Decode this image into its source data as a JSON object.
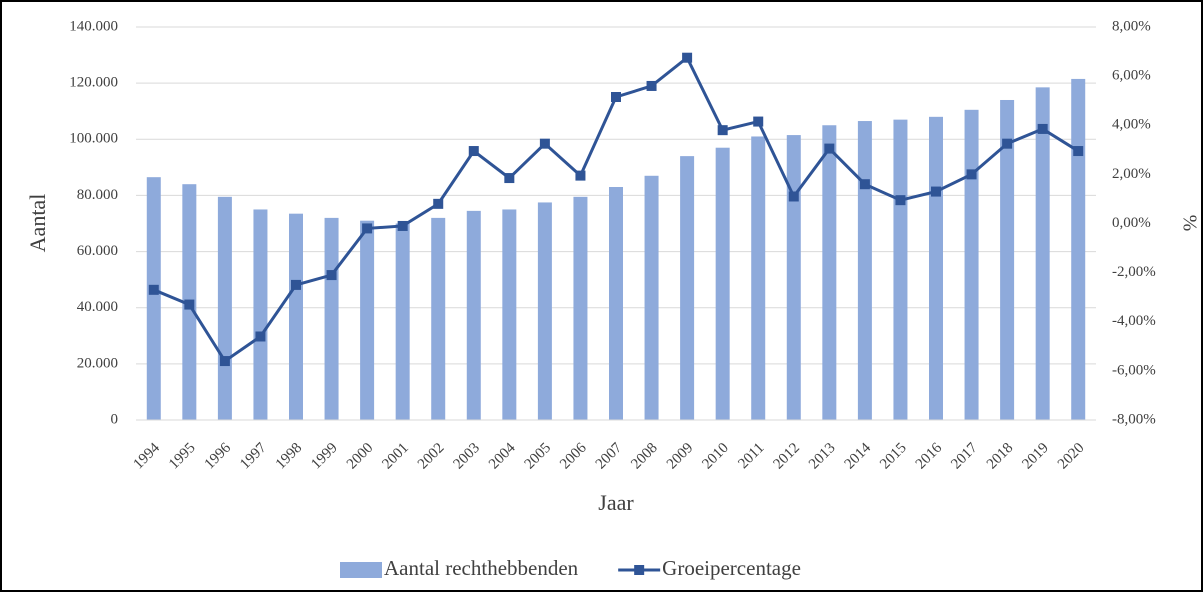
{
  "chart_data": {
    "type": "bar-line",
    "categories": [
      "1994",
      "1995",
      "1996",
      "1997",
      "1998",
      "1999",
      "2000",
      "2001",
      "2002",
      "2003",
      "2004",
      "2005",
      "2006",
      "2007",
      "2008",
      "2009",
      "2010",
      "2011",
      "2012",
      "2013",
      "2014",
      "2015",
      "2016",
      "2017",
      "2018",
      "2019",
      "2020"
    ],
    "series": [
      {
        "name": "Aantal rechthebbenden",
        "type": "bar",
        "color": "#8eaadb",
        "values": [
          86500,
          84000,
          79500,
          75000,
          73500,
          72000,
          71000,
          70000,
          72000,
          74500,
          75000,
          77500,
          79500,
          83000,
          87000,
          94000,
          97000,
          101000,
          101500,
          105000,
          106500,
          107000,
          108000,
          110500,
          114000,
          118500,
          121500
        ]
      },
      {
        "name": "Groeipercentage",
        "type": "line",
        "axis": "y2",
        "color": "#2f5496",
        "values": [
          -2.7,
          -3.3,
          -5.6,
          -4.6,
          -2.5,
          -2.1,
          -0.2,
          -0.1,
          0.8,
          2.95,
          1.85,
          3.25,
          1.95,
          5.15,
          5.6,
          6.75,
          3.8,
          4.15,
          1.1,
          3.05,
          1.6,
          0.95,
          1.3,
          2.0,
          3.25,
          3.85,
          2.95
        ]
      }
    ],
    "x_label": "Jaar",
    "y_label": "Aantal",
    "y2_label": "%",
    "ylim": [
      0,
      140000
    ],
    "yticks": [
      0,
      {
        "value": 20000,
        "label": "20.000"
      },
      {
        "value": 40000,
        "label": "40.000"
      },
      {
        "value": 60000,
        "label": "60.000"
      },
      {
        "value": 80000,
        "label": "80.000"
      },
      {
        "value": 100000,
        "label": "100.000"
      },
      {
        "value": 120000,
        "label": "120.000"
      },
      {
        "value": 140000,
        "label": "140.000"
      }
    ],
    "y2lim": [
      -8,
      8
    ],
    "y2ticks": [
      {
        "value": -8,
        "label": "-8,00%"
      },
      {
        "value": -6,
        "label": "-6,00%"
      },
      {
        "value": -4,
        "label": "-4,00%"
      },
      {
        "value": -2,
        "label": "-2,00%"
      },
      {
        "value": 0,
        "label": "0,00%"
      },
      {
        "value": 2,
        "label": "2,00%"
      },
      {
        "value": 4,
        "label": "4,00%"
      },
      {
        "value": 6,
        "label": "6,00%"
      },
      {
        "value": 8,
        "label": "8,00%"
      }
    ],
    "grid": true,
    "legend": "bottom"
  }
}
